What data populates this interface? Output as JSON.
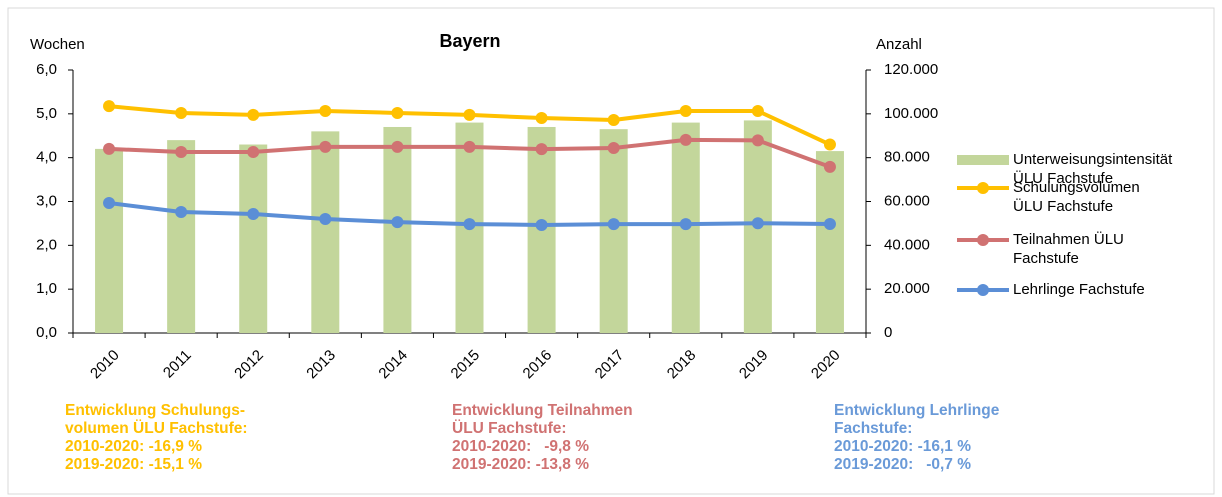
{
  "chart_data": {
    "type": "combo",
    "title": "Bayern",
    "y_label": "Wochen",
    "y2_label": "Anzahl",
    "categories": [
      "2010",
      "2011",
      "2012",
      "2013",
      "2014",
      "2015",
      "2016",
      "2017",
      "2018",
      "2019",
      "2020"
    ],
    "series": [
      {
        "name": "Unterweisungsintensität ÜLU Fachstufe",
        "type": "bar",
        "color": "#c3d69b",
        "axis": "y",
        "values": [
          4.2,
          4.4,
          4.3,
          4.6,
          4.7,
          4.8,
          4.7,
          4.65,
          4.8,
          4.85,
          4.15
        ]
      },
      {
        "name": "Schulungsvolumen ÜLU Fachstufe",
        "type": "line",
        "color": "#ffc000",
        "axis": "y2",
        "values": [
          103500,
          100400,
          99500,
          101300,
          100400,
          99500,
          98100,
          97200,
          101300,
          101300,
          86000
        ]
      },
      {
        "name": "Teilnahmen ÜLU Fachstufe",
        "type": "line",
        "color": "#d07272",
        "axis": "y2",
        "values": [
          84000,
          82600,
          82600,
          84900,
          84900,
          84900,
          83900,
          84400,
          88100,
          87900,
          75800
        ]
      },
      {
        "name": "Lehrlinge Fachstufe",
        "type": "line",
        "color": "#5b8ed6",
        "axis": "y2",
        "values": [
          59300,
          55200,
          54300,
          52000,
          50600,
          49700,
          49300,
          49700,
          49700,
          50100,
          49750
        ]
      }
    ],
    "ylim": [
      0,
      6
    ],
    "yticks": [
      {
        "value": 0,
        "label": "0,0"
      },
      {
        "value": 1,
        "label": "1,0"
      },
      {
        "value": 2,
        "label": "2,0"
      },
      {
        "value": 3,
        "label": "3,0"
      },
      {
        "value": 4,
        "label": "4,0"
      },
      {
        "value": 5,
        "label": "5,0"
      },
      {
        "value": 6,
        "label": "6,0"
      }
    ],
    "y2lim": [
      0,
      120000
    ],
    "y2ticks": [
      0,
      {
        "value": 20000,
        "label": "20.000"
      },
      {
        "value": 40000,
        "label": "40.000"
      },
      {
        "value": 60000,
        "label": "60.000"
      },
      {
        "value": 80000,
        "label": "80.000"
      },
      {
        "value": 100000,
        "label": "100.000"
      },
      {
        "value": 120000,
        "label": "120.000"
      }
    ],
    "grid": false,
    "legend": "right",
    "annotations": [
      {
        "color": "#ffc000",
        "lines": [
          "Entwicklung Schulungs-",
          "volumen ÜLU Fachstufe:",
          "2010-2020: -16,9 %",
          "2019-2020: -15,1 %"
        ]
      },
      {
        "color": "#d07272",
        "lines": [
          "Entwicklung Teilnahmen",
          "ÜLU Fachstufe:",
          "2010-2020:   -9,8 %",
          "2019-2020: -13,8 %"
        ]
      },
      {
        "color": "#6a9ad8",
        "lines": [
          "Entwicklung Lehrlinge",
          "Fachstufe:",
          "2010-2020: -16,1 %",
          "2019-2020:   -0,7 %"
        ]
      }
    ]
  }
}
